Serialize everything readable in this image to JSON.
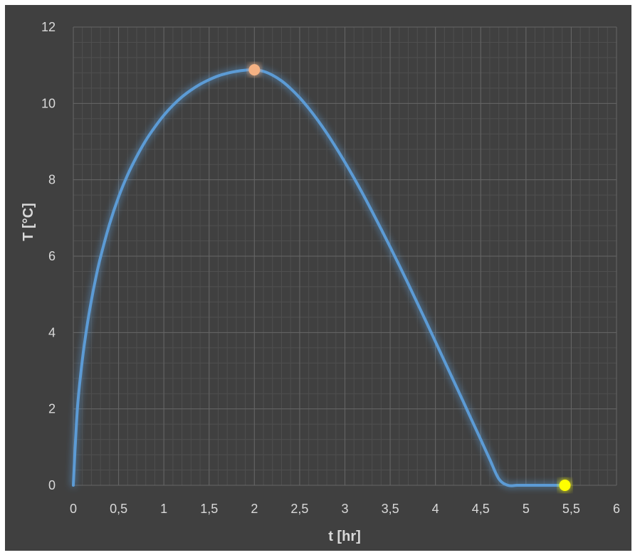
{
  "chart_data": {
    "type": "line",
    "xlabel": "t [hr]",
    "ylabel": "T [°C]",
    "xlim": [
      0,
      6
    ],
    "ylim": [
      0,
      12
    ],
    "x_ticks": [
      0,
      0.5,
      1,
      1.5,
      2,
      2.5,
      3,
      3.5,
      4,
      4.5,
      5,
      5.5,
      6
    ],
    "x_tick_labels": [
      "0",
      "0,5",
      "1",
      "1,5",
      "2",
      "2,5",
      "3",
      "3,5",
      "4",
      "4,5",
      "5",
      "5,5",
      "6"
    ],
    "y_ticks": [
      0,
      2,
      4,
      6,
      8,
      10,
      12
    ],
    "y_tick_labels": [
      "0",
      "2",
      "4",
      "6",
      "8",
      "10",
      "12"
    ],
    "grid": "major and minor",
    "legend": "none",
    "series": [
      {
        "color": "#5b9bd5",
        "x": [
          0,
          0.02,
          0.05,
          0.1,
          0.15,
          0.2,
          0.25,
          0.3,
          0.4,
          0.5,
          0.6,
          0.7,
          0.8,
          0.9,
          1.0,
          1.1,
          1.2,
          1.3,
          1.4,
          1.5,
          1.6,
          1.7,
          1.8,
          1.9,
          2.0,
          2.1,
          2.2,
          2.3,
          2.4,
          2.5,
          2.6,
          2.7,
          2.8,
          2.9,
          3.0,
          3.1,
          3.2,
          3.3,
          3.4,
          3.5,
          3.6,
          3.7,
          3.8,
          3.9,
          4.0,
          4.1,
          4.2,
          4.3,
          4.4,
          4.5,
          4.6,
          4.7,
          4.8,
          4.9,
          5.0,
          5.1,
          5.2,
          5.3,
          5.4,
          5.43
        ],
        "y": [
          0,
          0.98,
          2.16,
          3.29,
          4.15,
          4.85,
          5.45,
          5.97,
          6.84,
          7.55,
          8.13,
          8.61,
          9.03,
          9.38,
          9.69,
          9.95,
          10.17,
          10.35,
          10.5,
          10.62,
          10.72,
          10.79,
          10.84,
          10.87,
          10.88,
          10.84,
          10.74,
          10.59,
          10.39,
          10.15,
          9.87,
          9.56,
          9.22,
          8.85,
          8.46,
          8.05,
          7.62,
          7.17,
          6.71,
          6.24,
          5.76,
          5.27,
          4.77,
          4.27,
          3.76,
          3.25,
          2.74,
          2.23,
          1.71,
          1.2,
          0.68,
          0.17,
          0.0,
          0.0,
          0.0,
          0.0,
          0.0,
          0.0,
          0.0,
          0.0
        ]
      }
    ],
    "highlight_points": [
      {
        "x": 2.0,
        "y": 10.88,
        "color": "#f4b183"
      },
      {
        "x": 5.43,
        "y": 0.0,
        "color": "#ffff00"
      }
    ]
  }
}
